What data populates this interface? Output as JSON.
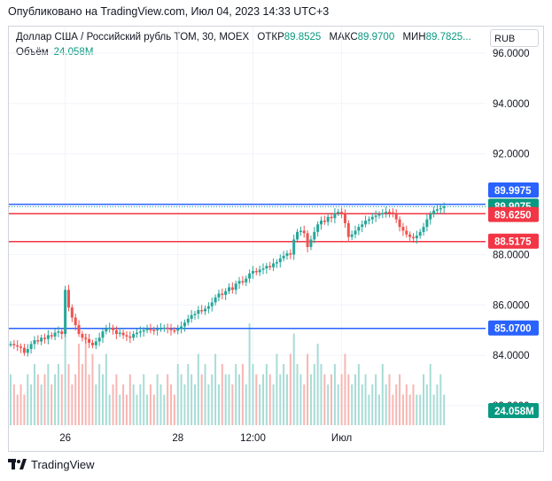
{
  "header": {
    "published_text": "Опубликовано на TradingView.com, Июл 04, 2023 14:33 UTC+3"
  },
  "legend": {
    "symbol": "Доллар США / Российский рубль TOM, 30, MOEX",
    "open_label": "ОТКР",
    "open_value": "89.8525",
    "high_label": "МАКС",
    "high_value": "89.9700",
    "low_label": "МИН",
    "low_value": "89.7825",
    "ellipsis": "...",
    "volume_label": "Объём",
    "volume_value": "24.058M"
  },
  "currency_button": {
    "label": "RUB"
  },
  "footer": {
    "brand": "TradingView"
  },
  "colors": {
    "up": "#26a69a",
    "down": "#ef5350",
    "blue_line": "#2962ff",
    "red_line": "#f23645",
    "volume_up": "#a8dcd6",
    "volume_down": "#f7b6b3"
  },
  "chart_data": {
    "type": "candlestick",
    "ylim": [
      82.5,
      96.6
    ],
    "y_ticks": [
      {
        "value": 96.0,
        "label": "96.0000"
      },
      {
        "value": 94.0,
        "label": "94.0000"
      },
      {
        "value": 92.0,
        "label": "92.0000"
      },
      {
        "value": 88.0,
        "label": "88.0000"
      },
      {
        "value": 86.0,
        "label": "86.0000"
      },
      {
        "value": 84.0,
        "label": "84.0000"
      },
      {
        "value": 82.0,
        "label": "82.0000"
      }
    ],
    "x_ticks": [
      {
        "label": "26",
        "index": 16
      },
      {
        "label": "28",
        "index": 49
      },
      {
        "label": "12:00",
        "index": 71
      },
      {
        "label": "Июл",
        "index": 97
      }
    ],
    "horizontal_lines": [
      {
        "value": 89.9975,
        "label": "89.9975",
        "color": "#2962ff"
      },
      {
        "value": 89.625,
        "label": "89.6250",
        "color": "#f23645"
      },
      {
        "value": 88.5175,
        "label": "88.5175",
        "color": "#f23645"
      },
      {
        "value": 85.07,
        "label": "85.0700",
        "color": "#2962ff"
      }
    ],
    "last_price": {
      "value": 89.9075,
      "label": "89.9075",
      "color": "#089981"
    },
    "volume_badge": {
      "label": "24.058M",
      "color": "#089981"
    },
    "candles_close": [
      84.45,
      84.4,
      84.35,
      84.3,
      84.1,
      84.25,
      84.45,
      84.6,
      84.55,
      84.7,
      84.65,
      84.8,
      84.75,
      84.9,
      84.95,
      84.85,
      86.6,
      85.9,
      85.5,
      85.2,
      84.85,
      84.7,
      84.65,
      84.5,
      84.4,
      84.55,
      84.7,
      84.95,
      85.05,
      85.1,
      85.0,
      84.85,
      84.9,
      84.8,
      84.75,
      84.7,
      84.85,
      84.9,
      84.95,
      85.0,
      85.05,
      85.02,
      85.0,
      85.05,
      85.08,
      85.1,
      85.05,
      85.0,
      84.98,
      85.05,
      85.15,
      85.3,
      85.45,
      85.6,
      85.65,
      85.8,
      85.75,
      85.85,
      85.95,
      86.1,
      86.3,
      86.45,
      86.4,
      86.55,
      86.7,
      86.6,
      86.85,
      86.95,
      86.9,
      87.05,
      87.25,
      87.35,
      87.3,
      87.4,
      87.45,
      87.55,
      87.5,
      87.65,
      87.7,
      87.85,
      87.95,
      88.05,
      88.0,
      88.6,
      88.9,
      88.95,
      88.85,
      88.3,
      88.6,
      88.9,
      89.2,
      89.35,
      89.3,
      89.5,
      89.45,
      89.65,
      89.7,
      89.6,
      89.25,
      88.7,
      88.8,
      88.95,
      89.1,
      89.2,
      89.35,
      89.4,
      89.5,
      89.55,
      89.6,
      89.65,
      89.7,
      89.68,
      89.6,
      89.4,
      89.1,
      88.95,
      88.8,
      88.7,
      88.65,
      88.75,
      88.9,
      89.1,
      89.4,
      89.6,
      89.75,
      89.8,
      89.85,
      89.9075
    ],
    "volume": [
      0.5,
      0.4,
      0.3,
      0.4,
      0.3,
      0.5,
      0.4,
      0.6,
      0.5,
      0.4,
      0.5,
      0.6,
      0.4,
      0.5,
      0.6,
      0.5,
      0.9,
      0.6,
      0.4,
      0.5,
      0.8,
      0.6,
      0.9,
      0.5,
      0.7,
      0.4,
      0.6,
      0.5,
      0.7,
      0.3,
      0.4,
      0.5,
      0.3,
      0.4,
      0.3,
      0.5,
      0.4,
      0.3,
      0.4,
      0.5,
      0.3,
      0.4,
      0.3,
      0.5,
      0.4,
      0.3,
      0.5,
      0.4,
      0.3,
      0.6,
      0.5,
      0.4,
      0.6,
      0.5,
      0.4,
      0.7,
      0.5,
      0.6,
      0.4,
      0.5,
      0.7,
      0.4,
      0.6,
      0.5,
      0.5,
      0.4,
      0.6,
      0.5,
      0.6,
      0.4,
      1.0,
      0.6,
      0.5,
      0.4,
      0.5,
      0.6,
      0.5,
      0.4,
      0.7,
      0.5,
      0.6,
      0.5,
      0.7,
      0.9,
      0.6,
      0.5,
      0.4,
      0.7,
      0.5,
      0.6,
      0.8,
      0.6,
      0.5,
      0.4,
      0.5,
      0.6,
      0.4,
      0.5,
      0.7,
      0.5,
      0.4,
      0.5,
      0.6,
      0.4,
      0.5,
      0.3,
      0.4,
      0.5,
      0.3,
      0.6,
      0.4,
      0.5,
      0.3,
      0.4,
      0.5,
      0.3,
      0.4,
      0.3,
      0.4,
      0.3,
      0.3,
      0.5,
      0.4,
      0.6,
      0.3,
      0.4,
      0.5,
      0.3
    ]
  }
}
